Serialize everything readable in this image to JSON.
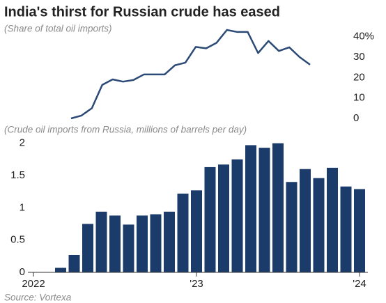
{
  "title": "India's thirst for Russian crude has eased",
  "source": "Source: Vortexa",
  "chart_data": [
    {
      "type": "line",
      "subtitle": "(Share of total oil imports)",
      "color": "#2b4a76",
      "values": [
        0,
        1.4,
        5,
        16.4,
        19.1,
        18,
        18.8,
        21.5,
        21.5,
        21.5,
        26,
        27.3,
        35,
        34.3,
        37,
        43.3,
        42.3,
        42.3,
        32,
        37.9,
        33,
        34.8,
        30,
        26.3
      ],
      "ylim": [
        0,
        45
      ],
      "yticks": [
        0,
        10,
        20,
        30,
        {
          "value": 40,
          "label": "40%"
        }
      ]
    },
    {
      "type": "bar",
      "subtitle": "(Crude oil imports from Russia, millions of barrels per day)",
      "color": "#1b3c6b",
      "categories": [
        "2022",
        null,
        null,
        null,
        null,
        null,
        null,
        null,
        null,
        null,
        null,
        null,
        "'23",
        null,
        null,
        null,
        null,
        null,
        null,
        null,
        null,
        null,
        null,
        null,
        "'24"
      ],
      "values": [
        0,
        0,
        0.07,
        0.27,
        0.75,
        0.94,
        0.88,
        0.74,
        0.88,
        0.9,
        0.94,
        1.22,
        1.27,
        1.63,
        1.67,
        1.75,
        1.97,
        1.93,
        2.0,
        1.4,
        1.6,
        1.46,
        1.62,
        1.33,
        1.29
      ],
      "ylim": [
        0,
        2.05
      ],
      "yticks": [
        0,
        0.5,
        1,
        1.5,
        2
      ]
    }
  ]
}
